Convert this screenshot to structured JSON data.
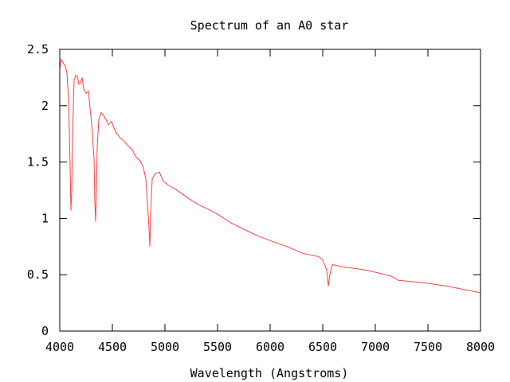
{
  "chart_data": {
    "type": "line",
    "title": "Spectrum of an A0 star",
    "xlabel": "Wavelength (Angstroms)",
    "ylabel": "",
    "xlim": [
      4000,
      8000
    ],
    "ylim": [
      0,
      2.5
    ],
    "xticks": [
      4000,
      4500,
      5000,
      5500,
      6000,
      6500,
      7000,
      7500,
      8000
    ],
    "yticks": [
      0,
      0.5,
      1,
      1.5,
      2,
      2.5
    ],
    "xtick_labels": [
      "4000",
      "4500",
      "5000",
      "5500",
      "6000",
      "6500",
      "7000",
      "7500",
      "8000"
    ],
    "ytick_labels": [
      "0",
      "0.5",
      "1",
      "1.5",
      "2",
      "2.5"
    ],
    "grid": false,
    "legend": "none",
    "series": [
      {
        "name": "spectrum",
        "color": "#ff4040",
        "x": [
          4000,
          4015,
          4038,
          4053,
          4068,
          4083,
          4091,
          4098,
          4106,
          4114,
          4121,
          4136,
          4152,
          4167,
          4182,
          4197,
          4212,
          4227,
          4250,
          4273,
          4288,
          4303,
          4326,
          4333,
          4341,
          4348,
          4356,
          4371,
          4394,
          4417,
          4439,
          4462,
          4492,
          4530,
          4568,
          4606,
          4644,
          4689,
          4720,
          4765,
          4795,
          4818,
          4833,
          4848,
          4856,
          4864,
          4879,
          4909,
          4947,
          4985,
          5023,
          5098,
          5174,
          5250,
          5326,
          5477,
          5629,
          5780,
          5894,
          6008,
          6159,
          6311,
          6462,
          6500,
          6538,
          6553,
          6568,
          6591,
          6689,
          6917,
          7144,
          7220,
          7447,
          7674,
          8000
        ],
        "y": [
          2.33,
          2.41,
          2.37,
          2.35,
          2.29,
          2.06,
          1.77,
          1.49,
          1.07,
          1.24,
          1.74,
          2.23,
          2.27,
          2.26,
          2.19,
          2.2,
          2.25,
          2.15,
          2.11,
          2.13,
          1.98,
          1.84,
          1.53,
          1.14,
          0.97,
          1.24,
          1.63,
          1.88,
          1.94,
          1.91,
          1.88,
          1.83,
          1.86,
          1.77,
          1.72,
          1.69,
          1.65,
          1.61,
          1.55,
          1.51,
          1.45,
          1.35,
          1.14,
          0.93,
          0.75,
          1.03,
          1.35,
          1.4,
          1.41,
          1.33,
          1.3,
          1.26,
          1.21,
          1.16,
          1.12,
          1.05,
          0.96,
          0.89,
          0.84,
          0.8,
          0.75,
          0.69,
          0.66,
          0.63,
          0.54,
          0.4,
          0.5,
          0.59,
          0.57,
          0.54,
          0.49,
          0.45,
          0.43,
          0.4,
          0.34
        ]
      }
    ]
  }
}
